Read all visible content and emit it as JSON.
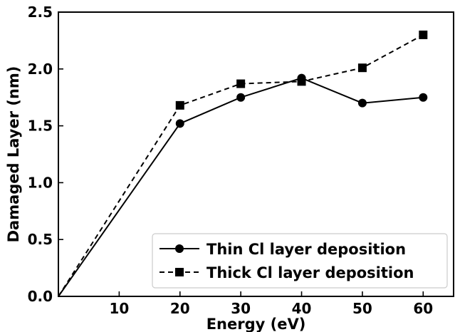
{
  "chart_data": {
    "type": "line",
    "title": "",
    "xlabel": "Energy (eV)",
    "ylabel": "Damaged Layer (nm)",
    "xlim": [
      0,
      65
    ],
    "ylim": [
      0.0,
      2.5
    ],
    "xticks": [
      10,
      20,
      30,
      40,
      50,
      60
    ],
    "xtick_labels": [
      "10",
      "20",
      "30",
      "40",
      "50",
      "60"
    ],
    "yticks": [
      0.0,
      0.5,
      1.0,
      1.5,
      2.0,
      2.5
    ],
    "ytick_labels": [
      "0.0",
      "0.5",
      "1.0",
      "1.5",
      "2.0",
      "2.5"
    ],
    "grid": false,
    "legend_position": "lower-right",
    "series": [
      {
        "name": "Thin Cl layer deposition",
        "marker": "circle",
        "line_style": "solid",
        "color": "#000000",
        "x": [
          0,
          20,
          30,
          40,
          50,
          60
        ],
        "y": [
          0.0,
          1.52,
          1.75,
          1.92,
          1.7,
          1.75
        ]
      },
      {
        "name": "Thick Cl layer deposition",
        "marker": "square",
        "line_style": "dashed",
        "color": "#000000",
        "x": [
          0,
          20,
          30,
          40,
          50,
          60
        ],
        "y": [
          0.0,
          1.68,
          1.87,
          1.89,
          2.01,
          2.3
        ]
      }
    ]
  }
}
